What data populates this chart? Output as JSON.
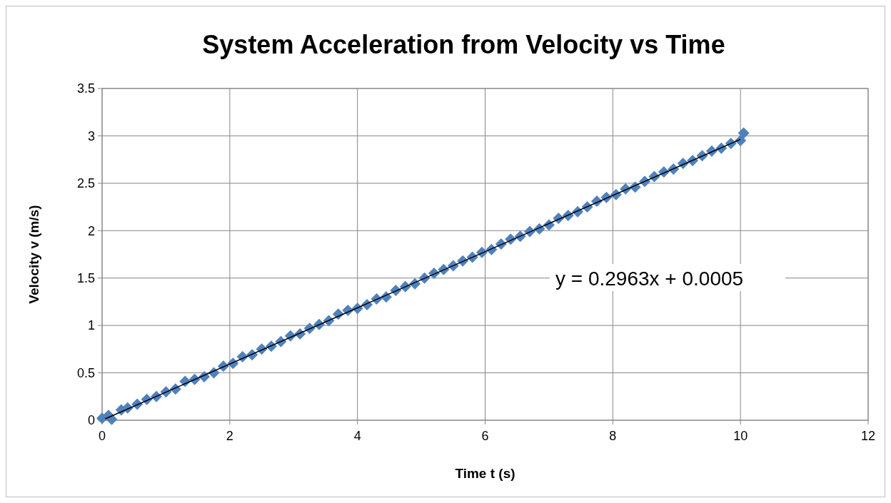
{
  "chart_data": {
    "type": "scatter",
    "title": "System Acceleration from Velocity vs Time",
    "xlabel": "Time t (s)",
    "ylabel": "Velocity v (m/s)",
    "annotations": [
      "y = 0.2963x + 0.0005"
    ],
    "xlim": [
      0,
      12
    ],
    "ylim": [
      0,
      3.5
    ],
    "xticks": [
      0,
      2,
      4,
      6,
      8,
      10,
      12
    ],
    "yticks": [
      0,
      0.5,
      1,
      1.5,
      2,
      2.5,
      3,
      3.5
    ],
    "grid": true,
    "series": [
      {
        "marker": "diamond",
        "color": "#4f81bd",
        "x": [
          0.0,
          0.1,
          0.15,
          0.3,
          0.4,
          0.55,
          0.7,
          0.85,
          1.0,
          1.15,
          1.3,
          1.45,
          1.6,
          1.75,
          1.9,
          2.05,
          2.2,
          2.35,
          2.5,
          2.65,
          2.8,
          2.95,
          3.1,
          3.25,
          3.4,
          3.55,
          3.7,
          3.85,
          4.0,
          4.15,
          4.3,
          4.45,
          4.6,
          4.75,
          4.9,
          5.05,
          5.2,
          5.35,
          5.5,
          5.65,
          5.8,
          5.95,
          6.1,
          6.25,
          6.4,
          6.55,
          6.7,
          6.85,
          7.0,
          7.15,
          7.3,
          7.45,
          7.6,
          7.75,
          7.9,
          8.05,
          8.2,
          8.35,
          8.5,
          8.65,
          8.8,
          8.95,
          9.1,
          9.25,
          9.4,
          9.55,
          9.7,
          9.85,
          10.0,
          10.05
        ],
        "values": [
          0.02,
          0.05,
          0.01,
          0.11,
          0.13,
          0.17,
          0.22,
          0.25,
          0.3,
          0.33,
          0.41,
          0.43,
          0.46,
          0.5,
          0.57,
          0.6,
          0.67,
          0.69,
          0.75,
          0.78,
          0.83,
          0.89,
          0.91,
          0.97,
          1.01,
          1.05,
          1.12,
          1.16,
          1.18,
          1.22,
          1.28,
          1.3,
          1.37,
          1.41,
          1.44,
          1.5,
          1.55,
          1.59,
          1.63,
          1.68,
          1.72,
          1.77,
          1.8,
          1.86,
          1.91,
          1.94,
          1.99,
          2.02,
          2.06,
          2.13,
          2.16,
          2.2,
          2.25,
          2.31,
          2.35,
          2.38,
          2.44,
          2.46,
          2.52,
          2.57,
          2.62,
          2.65,
          2.71,
          2.74,
          2.79,
          2.84,
          2.87,
          2.92,
          2.95,
          3.03
        ]
      },
      {
        "type": "line",
        "color": "#000000",
        "line_style": "solid",
        "x": [
          0.05,
          10.0
        ],
        "values": [
          0.015,
          2.964
        ]
      }
    ]
  }
}
